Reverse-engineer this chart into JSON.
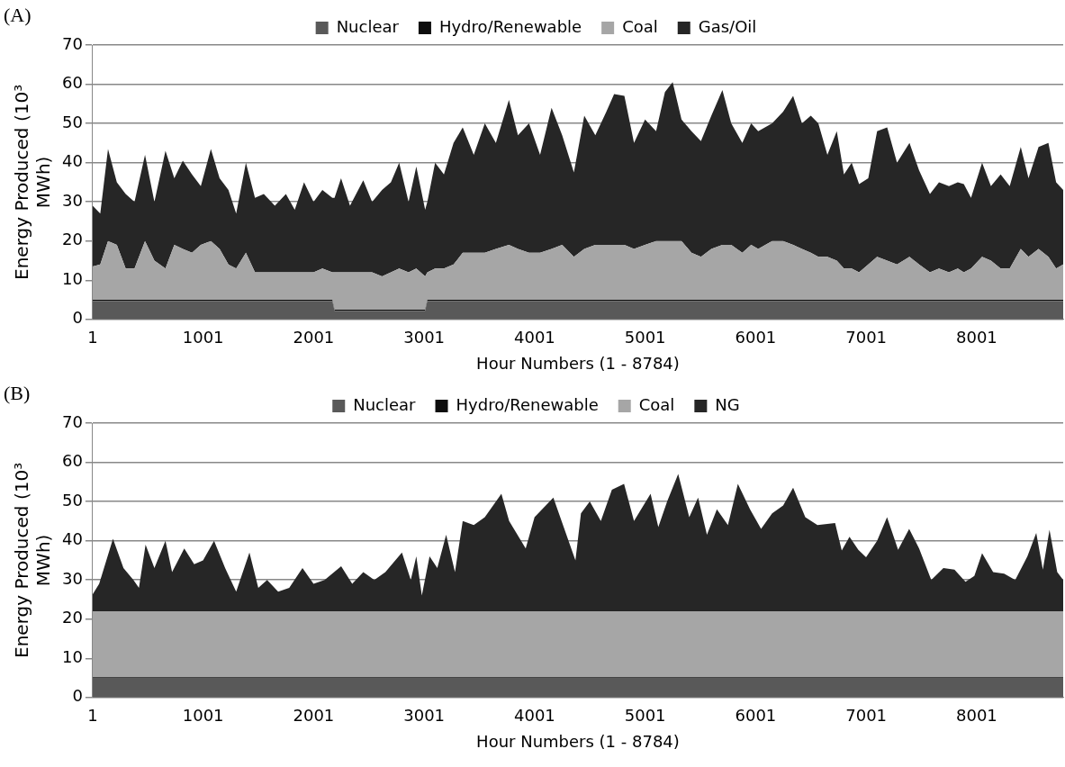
{
  "chart_data": [
    {
      "type": "area",
      "title": "(A)",
      "xlabel": "Hour Numbers (1 - 8784)",
      "ylabel": "Energy Produced (10³ MWh)",
      "stacked": true,
      "legend": "top",
      "grid": "y",
      "xlim": [
        1,
        8784
      ],
      "xticks": [
        1,
        1001,
        2001,
        3001,
        4001,
        5001,
        6001,
        7001,
        8001
      ],
      "ylim": [
        0,
        70
      ],
      "yticks": [
        0,
        10,
        20,
        30,
        40,
        50,
        60,
        70
      ],
      "x": [
        1,
        70,
        140,
        220,
        300,
        380,
        475,
        560,
        660,
        740,
        817,
        900,
        980,
        1071,
        1150,
        1230,
        1300,
        1388,
        1470,
        1550,
        1650,
        1750,
        1830,
        1914,
        2000,
        2080,
        2170,
        2190,
        2249,
        2330,
        2450,
        2530,
        2620,
        2700,
        2775,
        2860,
        2930,
        3010,
        3030,
        3100,
        3180,
        3267,
        3350,
        3450,
        3550,
        3650,
        3768,
        3850,
        3950,
        4050,
        4154,
        4250,
        4356,
        4450,
        4550,
        4650,
        4720,
        4813,
        4900,
        5000,
        5100,
        5180,
        5250,
        5330,
        5420,
        5506,
        5600,
        5700,
        5780,
        5880,
        5960,
        6024,
        6150,
        6250,
        6340,
        6420,
        6500,
        6568,
        6650,
        6735,
        6800,
        6870,
        6937,
        7020,
        7100,
        7191,
        7280,
        7393,
        7480,
        7578,
        7660,
        7750,
        7830,
        7885,
        7950,
        8050,
        8130,
        8218,
        8300,
        8400,
        8470,
        8561,
        8650,
        8720,
        8784
      ],
      "series": [
        {
          "name": "Nuclear",
          "color": "#595959",
          "values": [
            4.7,
            4.7,
            4.7,
            4.7,
            4.7,
            4.7,
            4.7,
            4.7,
            4.7,
            4.7,
            4.7,
            4.7,
            4.7,
            4.7,
            4.7,
            4.7,
            4.7,
            4.7,
            4.7,
            4.7,
            4.7,
            4.7,
            4.7,
            4.7,
            4.7,
            4.7,
            4.7,
            2.2,
            2.2,
            2.2,
            2.2,
            2.2,
            2.2,
            2.2,
            2.2,
            2.2,
            2.2,
            2.2,
            4.7,
            4.7,
            4.7,
            4.7,
            4.7,
            4.7,
            4.7,
            4.7,
            4.7,
            4.7,
            4.7,
            4.7,
            4.7,
            4.7,
            4.7,
            4.7,
            4.7,
            4.7,
            4.7,
            4.7,
            4.7,
            4.7,
            4.7,
            4.7,
            4.7,
            4.7,
            4.7,
            4.7,
            4.7,
            4.7,
            4.7,
            4.7,
            4.7,
            4.7,
            4.7,
            4.7,
            4.7,
            4.7,
            4.7,
            4.7,
            4.7,
            4.7,
            4.7,
            4.7,
            4.7,
            4.7,
            4.7,
            4.7,
            4.7,
            4.7,
            4.7,
            4.7,
            4.7,
            4.7,
            4.7,
            4.7,
            4.7,
            4.7,
            4.7,
            4.7,
            4.7,
            4.7,
            4.7,
            4.7,
            4.7,
            4.7,
            4.7
          ]
        },
        {
          "name": "Hydro/Renewable",
          "color": "#0d0d0d",
          "values": [
            0.3,
            0.3,
            0.3,
            0.3,
            0.3,
            0.3,
            0.3,
            0.3,
            0.3,
            0.3,
            0.3,
            0.3,
            0.3,
            0.3,
            0.3,
            0.3,
            0.3,
            0.3,
            0.3,
            0.3,
            0.3,
            0.3,
            0.3,
            0.3,
            0.3,
            0.3,
            0.3,
            0.3,
            0.3,
            0.3,
            0.3,
            0.3,
            0.3,
            0.3,
            0.3,
            0.3,
            0.3,
            0.3,
            0.3,
            0.3,
            0.3,
            0.3,
            0.3,
            0.3,
            0.3,
            0.3,
            0.3,
            0.3,
            0.3,
            0.3,
            0.3,
            0.3,
            0.3,
            0.3,
            0.3,
            0.3,
            0.3,
            0.3,
            0.3,
            0.3,
            0.3,
            0.3,
            0.3,
            0.3,
            0.3,
            0.3,
            0.3,
            0.3,
            0.3,
            0.3,
            0.3,
            0.3,
            0.3,
            0.3,
            0.3,
            0.3,
            0.3,
            0.3,
            0.3,
            0.3,
            0.3,
            0.3,
            0.3,
            0.3,
            0.3,
            0.3,
            0.3,
            0.3,
            0.3,
            0.3,
            0.3,
            0.3,
            0.3,
            0.3,
            0.3,
            0.3,
            0.3,
            0.3,
            0.3,
            0.3,
            0.3,
            0.3,
            0.3,
            0.3,
            0.3
          ]
        },
        {
          "name": "Coal",
          "color": "#a6a6a6",
          "values": [
            8.5,
            9,
            15,
            14,
            8,
            8,
            15,
            10,
            8,
            14,
            13,
            12,
            14,
            15,
            13,
            9,
            8,
            12,
            7,
            7,
            7,
            7,
            7,
            7,
            7,
            8,
            7,
            9.5,
            9.5,
            9.5,
            9.5,
            9.5,
            8.5,
            9.5,
            10.5,
            9.5,
            10.5,
            8.5,
            7,
            8,
            8,
            9,
            12,
            12,
            12,
            13,
            14,
            13,
            12,
            12,
            13,
            14,
            11,
            13,
            14,
            14,
            14,
            14,
            13,
            14,
            15,
            15,
            15,
            15,
            12,
            11,
            13,
            14,
            14,
            12,
            14,
            13,
            15,
            15,
            14,
            13,
            12,
            11,
            11,
            10,
            8,
            8,
            7,
            9,
            11,
            10,
            9,
            11,
            9,
            7,
            8,
            7,
            8,
            7,
            8,
            11,
            10,
            8,
            8,
            13,
            11,
            13,
            11,
            8,
            9
          ]
        },
        {
          "name": "Gas/Oil",
          "color": "#262626",
          "values": [
            15.5,
            13,
            23.5,
            16,
            19,
            17,
            22,
            15,
            30,
            17,
            22.5,
            20,
            15,
            23.5,
            18,
            19,
            14,
            23,
            19,
            20,
            17,
            20,
            16,
            23,
            18,
            20,
            19,
            19,
            24,
            17,
            23.5,
            18,
            22,
            23,
            27,
            18,
            26,
            17,
            18,
            27,
            24,
            31,
            32,
            25,
            33,
            27,
            37,
            29,
            33,
            25,
            36,
            28,
            21.5,
            34,
            28,
            34,
            38.5,
            38,
            27,
            32,
            28,
            38,
            40.5,
            31,
            31,
            29.5,
            34,
            39.5,
            31,
            28,
            31,
            30,
            30,
            33,
            38,
            32,
            35,
            34,
            26,
            33,
            24,
            27,
            22.5,
            22,
            32,
            34,
            26,
            29,
            24,
            20,
            22,
            22,
            22,
            22.5,
            18,
            24,
            19,
            24,
            21,
            26,
            20,
            26,
            29,
            22,
            19
          ]
        }
      ]
    },
    {
      "type": "area",
      "title": "(B)",
      "xlabel": "Hour Numbers (1 - 8784)",
      "ylabel": "Energy Produced (10³ MWh)",
      "stacked": true,
      "legend": "top",
      "grid": "y",
      "xlim": [
        1,
        8784
      ],
      "xticks": [
        1,
        1001,
        2001,
        3001,
        4001,
        5001,
        6001,
        7001,
        8001
      ],
      "ylim": [
        0,
        70
      ],
      "yticks": [
        0,
        10,
        20,
        30,
        40,
        50,
        60,
        70
      ],
      "x": [
        1,
        60,
        185,
        280,
        370,
        420,
        480,
        560,
        660,
        720,
        830,
        920,
        1000,
        1100,
        1200,
        1300,
        1420,
        1500,
        1580,
        1680,
        1780,
        1900,
        2000,
        2100,
        2250,
        2350,
        2450,
        2550,
        2650,
        2800,
        2880,
        2930,
        2980,
        3050,
        3120,
        3200,
        3280,
        3350,
        3450,
        3550,
        3700,
        3770,
        3920,
        4000,
        4170,
        4370,
        4420,
        4500,
        4600,
        4700,
        4810,
        4900,
        5050,
        5120,
        5200,
        5300,
        5400,
        5480,
        5560,
        5650,
        5750,
        5840,
        5950,
        6050,
        6150,
        6250,
        6340,
        6450,
        6560,
        6720,
        6780,
        6850,
        6930,
        7000,
        7100,
        7190,
        7290,
        7390,
        7480,
        7590,
        7700,
        7800,
        7900,
        7980,
        8050,
        8150,
        8250,
        8350,
        8460,
        8540,
        8600,
        8660,
        8730,
        8784
      ],
      "series": [
        {
          "name": "Nuclear",
          "color": "#595959",
          "values": [
            5,
            5,
            5,
            5,
            5,
            5,
            5,
            5,
            5,
            5,
            5,
            5,
            5,
            5,
            5,
            5,
            5,
            5,
            5,
            5,
            5,
            5,
            5,
            5,
            5,
            5,
            5,
            5,
            5,
            5,
            5,
            5,
            5,
            5,
            5,
            5,
            5,
            5,
            5,
            5,
            5,
            5,
            5,
            5,
            5,
            5,
            5,
            5,
            5,
            5,
            5,
            5,
            5,
            5,
            5,
            5,
            5,
            5,
            5,
            5,
            5,
            5,
            5,
            5,
            5,
            5,
            5,
            5,
            5,
            5,
            5,
            5,
            5,
            5,
            5,
            5,
            5,
            5,
            5,
            5,
            5,
            5,
            5,
            5,
            5,
            5,
            5,
            5,
            5,
            5,
            5,
            5,
            5,
            5
          ]
        },
        {
          "name": "Hydro/Renewable",
          "color": "#0d0d0d",
          "values": [
            0.2,
            0.2,
            0.2,
            0.2,
            0.2,
            0.2,
            0.2,
            0.2,
            0.2,
            0.2,
            0.2,
            0.2,
            0.2,
            0.2,
            0.2,
            0.2,
            0.2,
            0.2,
            0.2,
            0.2,
            0.2,
            0.2,
            0.2,
            0.2,
            0.2,
            0.2,
            0.2,
            0.2,
            0.2,
            0.2,
            0.2,
            0.2,
            0.2,
            0.2,
            0.2,
            0.2,
            0.2,
            0.2,
            0.2,
            0.2,
            0.2,
            0.2,
            0.2,
            0.2,
            0.2,
            0.2,
            0.2,
            0.2,
            0.2,
            0.2,
            0.2,
            0.2,
            0.2,
            0.2,
            0.2,
            0.2,
            0.2,
            0.2,
            0.2,
            0.2,
            0.2,
            0.2,
            0.2,
            0.2,
            0.2,
            0.2,
            0.2,
            0.2,
            0.2,
            0.2,
            0.2,
            0.2,
            0.2,
            0.2,
            0.2,
            0.2,
            0.2,
            0.2,
            0.2,
            0.2,
            0.2,
            0.2,
            0.2,
            0.2,
            0.2,
            0.2,
            0.2,
            0.2,
            0.2,
            0.2,
            0.2,
            0.2,
            0.2,
            0.2
          ]
        },
        {
          "name": "Coal",
          "color": "#a6a6a6",
          "values": [
            16.8,
            16.8,
            16.8,
            16.8,
            16.8,
            16.8,
            16.8,
            16.8,
            16.8,
            16.8,
            16.8,
            16.8,
            16.8,
            16.8,
            16.8,
            16.8,
            16.8,
            16.8,
            16.8,
            16.8,
            16.8,
            16.8,
            16.8,
            16.8,
            16.8,
            16.8,
            16.8,
            16.8,
            16.8,
            16.8,
            16.8,
            16.8,
            16.8,
            16.8,
            16.8,
            16.8,
            16.8,
            16.8,
            16.8,
            16.8,
            16.8,
            16.8,
            16.8,
            16.8,
            16.8,
            16.8,
            16.8,
            16.8,
            16.8,
            16.8,
            16.8,
            16.8,
            16.8,
            16.8,
            16.8,
            16.8,
            16.8,
            16.8,
            16.8,
            16.8,
            16.8,
            16.8,
            16.8,
            16.8,
            16.8,
            16.8,
            16.8,
            16.8,
            16.8,
            16.8,
            16.8,
            16.8,
            16.8,
            16.8,
            16.8,
            16.8,
            16.8,
            16.8,
            16.8,
            16.8,
            16.8,
            16.8,
            16.8,
            16.8,
            16.8,
            16.8,
            16.8,
            16.8,
            16.8,
            16.8,
            16.8,
            16.8,
            16.8,
            16.8
          ]
        },
        {
          "name": "NG",
          "color": "#262626",
          "values": [
            4.3,
            7,
            18.5,
            11,
            8,
            6,
            17,
            11,
            18,
            10,
            16,
            12,
            13,
            18,
            11,
            5,
            15,
            6,
            8,
            5,
            6,
            11,
            7,
            8,
            11.5,
            7,
            10,
            8,
            10,
            15,
            8,
            14,
            4,
            14,
            11,
            19.5,
            10,
            23,
            22,
            24,
            30,
            23,
            16,
            24,
            29,
            13,
            25,
            28,
            23,
            31,
            32.5,
            23,
            30,
            21.5,
            28,
            35,
            24,
            29,
            19.5,
            26,
            22,
            32.5,
            26,
            21,
            25,
            27,
            31.5,
            24,
            22,
            22.5,
            15.5,
            19,
            15.7,
            13.8,
            18,
            24,
            15.7,
            21,
            16,
            8,
            11,
            10.6,
            7.5,
            9,
            14.8,
            10,
            9.6,
            8,
            14,
            20,
            10.6,
            20.8,
            10,
            8
          ]
        }
      ]
    }
  ]
}
